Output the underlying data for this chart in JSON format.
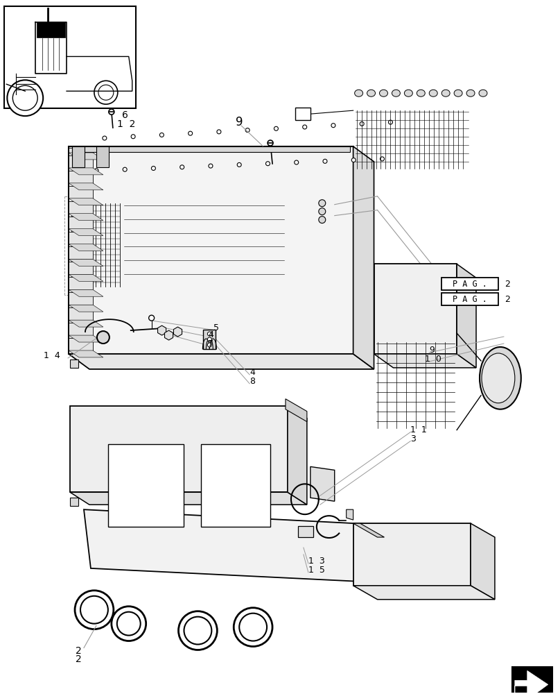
{
  "bg_color": "#ffffff",
  "lc": "#000000",
  "glc": "#999999",
  "fig_width": 8.08,
  "fig_height": 10.0
}
